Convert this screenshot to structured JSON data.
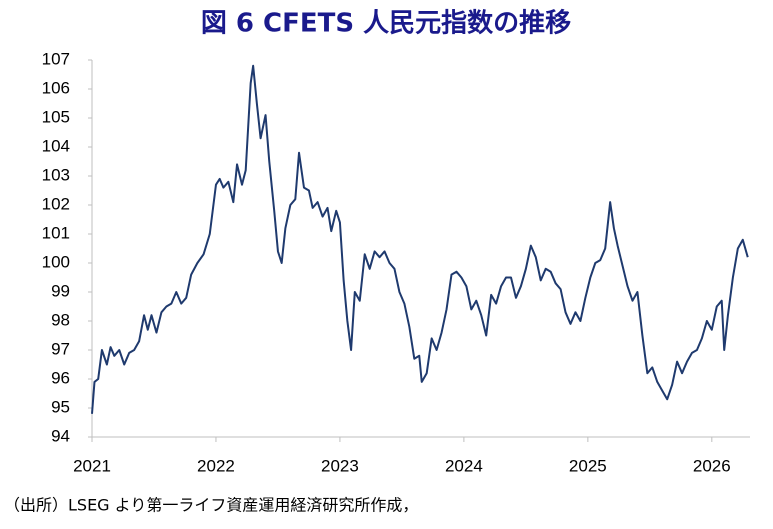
{
  "chart_data": {
    "type": "line",
    "title": "図 6  CFETS 人民元指数の推移",
    "note": "（出所）LSEG より第一ライフ資産運用経済研究所作成，",
    "xlim": [
      2021,
      2026.3
    ],
    "xticks": [
      2021,
      2022,
      2023,
      2024,
      2025,
      2026
    ],
    "ylim": [
      94,
      107
    ],
    "yticks": [
      94,
      95,
      96,
      97,
      98,
      99,
      100,
      101,
      102,
      103,
      104,
      105,
      106,
      107
    ],
    "grid": false,
    "series": [
      {
        "color": "#1f3a6e",
        "x": [
          2021.0,
          2021.02,
          2021.05,
          2021.08,
          2021.12,
          2021.15,
          2021.18,
          2021.22,
          2021.26,
          2021.3,
          2021.34,
          2021.38,
          2021.42,
          2021.45,
          2021.48,
          2021.52,
          2021.56,
          2021.6,
          2021.64,
          2021.68,
          2021.72,
          2021.76,
          2021.8,
          2021.85,
          2021.9,
          2021.95,
          2022.0,
          2022.03,
          2022.06,
          2022.1,
          2022.14,
          2022.17,
          2022.21,
          2022.24,
          2022.28,
          2022.3,
          2022.33,
          2022.36,
          2022.4,
          2022.43,
          2022.47,
          2022.5,
          2022.53,
          2022.56,
          2022.6,
          2022.64,
          2022.67,
          2022.71,
          2022.75,
          2022.78,
          2022.82,
          2022.86,
          2022.9,
          2022.93,
          2022.97,
          2023.0,
          2023.03,
          2023.06,
          2023.09,
          2023.12,
          2023.16,
          2023.2,
          2023.24,
          2023.28,
          2023.32,
          2023.36,
          2023.4,
          2023.44,
          2023.48,
          2023.52,
          2023.56,
          2023.6,
          2023.64,
          2023.66,
          2023.7,
          2023.74,
          2023.78,
          2023.82,
          2023.86,
          2023.9,
          2023.94,
          2023.98,
          2024.02,
          2024.06,
          2024.1,
          2024.14,
          2024.18,
          2024.22,
          2024.26,
          2024.3,
          2024.34,
          2024.38,
          2024.42,
          2024.46,
          2024.5,
          2024.54,
          2024.58,
          2024.62,
          2024.66,
          2024.7,
          2024.74,
          2024.78,
          2024.82,
          2024.86,
          2024.9,
          2024.94,
          2024.98,
          2025.02,
          2025.06,
          2025.1,
          2025.14,
          2025.18,
          2025.21,
          2025.24,
          2025.28,
          2025.32,
          2025.36,
          2025.4,
          2025.44,
          2025.48,
          2025.52,
          2025.56,
          2025.6,
          2025.64,
          2025.68,
          2025.72,
          2025.76,
          2025.8,
          2025.84,
          2025.88,
          2025.92,
          2025.96,
          2026.0,
          2026.04,
          2026.08,
          2026.1,
          2026.13,
          2026.17,
          2026.21,
          2026.25,
          2026.29
        ],
        "values": [
          94.8,
          95.9,
          96.0,
          97.0,
          96.5,
          97.1,
          96.8,
          97.0,
          96.5,
          96.9,
          97.0,
          97.3,
          98.2,
          97.7,
          98.2,
          97.6,
          98.3,
          98.5,
          98.6,
          99.0,
          98.6,
          98.8,
          99.6,
          100.0,
          100.3,
          101.0,
          102.7,
          102.9,
          102.6,
          102.8,
          102.1,
          103.4,
          102.7,
          103.2,
          106.2,
          106.8,
          105.5,
          104.3,
          105.1,
          103.5,
          101.8,
          100.4,
          100.0,
          101.2,
          102.0,
          102.2,
          103.8,
          102.6,
          102.5,
          101.9,
          102.1,
          101.6,
          101.9,
          101.1,
          101.8,
          101.4,
          99.4,
          98.0,
          97.0,
          99.0,
          98.7,
          100.3,
          99.8,
          100.4,
          100.2,
          100.4,
          100.0,
          99.8,
          99.0,
          98.6,
          97.8,
          96.7,
          96.8,
          95.9,
          96.2,
          97.4,
          97.0,
          97.6,
          98.4,
          99.6,
          99.7,
          99.5,
          99.2,
          98.4,
          98.7,
          98.2,
          97.5,
          98.9,
          98.6,
          99.2,
          99.5,
          99.5,
          98.8,
          99.2,
          99.8,
          100.6,
          100.2,
          99.4,
          99.8,
          99.7,
          99.3,
          99.1,
          98.3,
          97.9,
          98.3,
          98.0,
          98.8,
          99.5,
          100.0,
          100.1,
          100.5,
          102.1,
          101.2,
          100.6,
          99.9,
          99.2,
          98.7,
          99.0,
          97.5,
          96.2,
          96.4,
          95.9,
          95.6,
          95.3,
          95.8,
          96.6,
          96.2,
          96.6,
          96.9,
          97.0,
          97.4,
          98.0,
          97.7,
          98.5,
          98.7,
          97.0,
          98.2,
          99.5,
          100.5,
          100.8,
          100.2
        ]
      }
    ]
  }
}
